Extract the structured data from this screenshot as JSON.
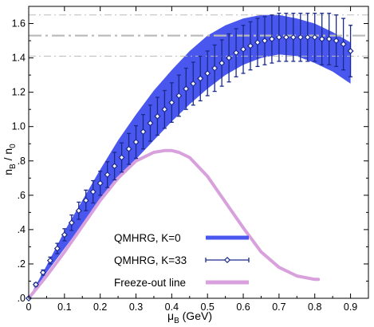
{
  "chart_data": {
    "type": "line",
    "xlabel": {
      "main": "μ",
      "sub": "B",
      "unit": " (GeV)"
    },
    "ylabel": {
      "n": "n",
      "nsub": "B",
      "slash": " / ",
      "d": "n",
      "dsub": "0"
    },
    "xlim": [
      0,
      0.95
    ],
    "ylim": [
      0,
      1.7
    ],
    "x_ticks": [
      0,
      0.1,
      0.2,
      0.3,
      0.4,
      0.5,
      0.6,
      0.7,
      0.8,
      0.9
    ],
    "x_tick_labels": [
      "0",
      "0.1",
      "0.2",
      "0.3",
      "0.4",
      "0.5",
      "0.6",
      "0.7",
      "0.8",
      "0.9"
    ],
    "y_ticks": [
      0,
      0.2,
      0.4,
      0.6,
      0.8,
      1.0,
      1.2,
      1.4,
      1.6
    ],
    "y_tick_labels": [
      ".0",
      ".2",
      ".4",
      ".6",
      ".8",
      "1.0",
      "1.2",
      "1.4",
      "1.6"
    ],
    "grid": false,
    "legend_placement": "bottom-center",
    "reference_lines": [
      {
        "y": 1.65,
        "style": "dashdot-thin",
        "color": "#bbbbbb"
      },
      {
        "y": 1.53,
        "style": "dashdot-thick",
        "color": "#bbbbbb"
      },
      {
        "y": 1.41,
        "style": "dashdot-thin",
        "color": "#bbbbbb"
      }
    ],
    "series": [
      {
        "name": "QMHRG, K=0",
        "kind": "band",
        "color": "#4a57ee",
        "x": [
          0,
          0.05,
          0.1,
          0.15,
          0.2,
          0.25,
          0.3,
          0.35,
          0.4,
          0.45,
          0.5,
          0.55,
          0.6,
          0.65,
          0.7,
          0.75,
          0.8,
          0.85,
          0.9
        ],
        "upper": [
          0,
          0.19,
          0.39,
          0.57,
          0.75,
          0.92,
          1.07,
          1.21,
          1.33,
          1.44,
          1.53,
          1.59,
          1.63,
          1.65,
          1.65,
          1.63,
          1.6,
          1.55,
          1.49
        ],
        "lower": [
          0,
          0.15,
          0.29,
          0.43,
          0.56,
          0.69,
          0.81,
          0.92,
          1.03,
          1.13,
          1.22,
          1.3,
          1.36,
          1.4,
          1.42,
          1.41,
          1.37,
          1.32,
          1.25
        ]
      },
      {
        "name": "QMHRG, K=33",
        "kind": "points_errorbars",
        "color": "#1a2a8a",
        "x": [
          0,
          0.02,
          0.04,
          0.06,
          0.08,
          0.1,
          0.12,
          0.14,
          0.16,
          0.18,
          0.2,
          0.22,
          0.24,
          0.26,
          0.28,
          0.3,
          0.32,
          0.34,
          0.36,
          0.38,
          0.4,
          0.42,
          0.44,
          0.46,
          0.48,
          0.5,
          0.52,
          0.54,
          0.56,
          0.58,
          0.6,
          0.62,
          0.64,
          0.66,
          0.68,
          0.7,
          0.72,
          0.74,
          0.76,
          0.78,
          0.8,
          0.82,
          0.84,
          0.86,
          0.88,
          0.9
        ],
        "y": [
          0.0,
          0.08,
          0.15,
          0.22,
          0.29,
          0.37,
          0.44,
          0.51,
          0.57,
          0.62,
          0.67,
          0.72,
          0.77,
          0.82,
          0.87,
          0.91,
          0.97,
          1.02,
          1.06,
          1.1,
          1.14,
          1.18,
          1.22,
          1.25,
          1.28,
          1.31,
          1.34,
          1.37,
          1.4,
          1.43,
          1.45,
          1.47,
          1.49,
          1.5,
          1.51,
          1.52,
          1.52,
          1.52,
          1.52,
          1.52,
          1.52,
          1.51,
          1.51,
          1.5,
          1.48,
          1.44
        ],
        "err": [
          0.0,
          0.01,
          0.015,
          0.02,
          0.03,
          0.035,
          0.045,
          0.05,
          0.06,
          0.065,
          0.07,
          0.075,
          0.08,
          0.085,
          0.09,
          0.095,
          0.1,
          0.105,
          0.11,
          0.11,
          0.115,
          0.12,
          0.12,
          0.125,
          0.13,
          0.13,
          0.135,
          0.135,
          0.14,
          0.14,
          0.14,
          0.14,
          0.14,
          0.14,
          0.14,
          0.14,
          0.14,
          0.14,
          0.14,
          0.14,
          0.14,
          0.15,
          0.15,
          0.15,
          0.15,
          0.15
        ]
      },
      {
        "name": "Freeze-out line",
        "kind": "line",
        "color": "#d8a0dc",
        "x": [
          0,
          0.05,
          0.1,
          0.15,
          0.2,
          0.25,
          0.3,
          0.35,
          0.38,
          0.4,
          0.42,
          0.45,
          0.5,
          0.55,
          0.6,
          0.65,
          0.7,
          0.75,
          0.8,
          0.81
        ],
        "y": [
          0,
          0.13,
          0.27,
          0.42,
          0.57,
          0.7,
          0.8,
          0.85,
          0.86,
          0.86,
          0.85,
          0.82,
          0.71,
          0.56,
          0.41,
          0.27,
          0.18,
          0.13,
          0.11,
          0.11
        ]
      }
    ]
  }
}
